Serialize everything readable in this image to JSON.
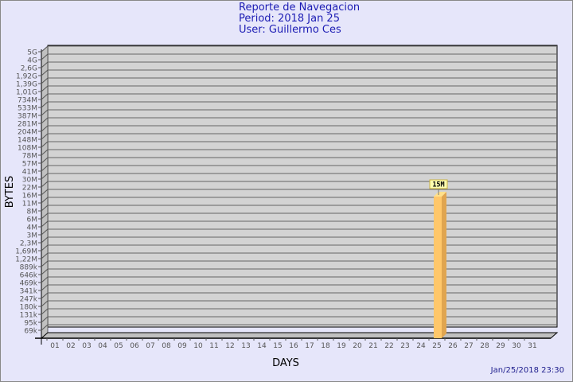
{
  "header": {
    "title": "Reporte de Navegacion",
    "period": "Period: 2018 Jan 25",
    "user": "User: Guillermo Ces"
  },
  "footer": {
    "timestamp": "Jan/25/2018 23:30"
  },
  "colors": {
    "background": "#e6e6fa",
    "plot": "#d3d3d3",
    "bar": "#ffc76a",
    "bar_side": "#e0a550",
    "title": "#1c1cb4"
  },
  "chart_data": {
    "type": "bar",
    "xlabel": "DAYS",
    "ylabel": "BYTES",
    "y_scale": "log-like (non-linear tick labels)",
    "grid": true,
    "y_ticks": [
      "5G",
      "4G",
      "2,6G",
      "1,92G",
      "1,39G",
      "1,01G",
      "734M",
      "533M",
      "387M",
      "281M",
      "204M",
      "148M",
      "108M",
      "78M",
      "57M",
      "41M",
      "30M",
      "22M",
      "16M",
      "11M",
      "8M",
      "6M",
      "4M",
      "3M",
      "2,3M",
      "1,69M",
      "1,22M",
      "889k",
      "646k",
      "469k",
      "341k",
      "247k",
      "180k",
      "131k",
      "95k",
      "69k"
    ],
    "y_tick_values": [
      5000000000.0,
      4000000000.0,
      2600000000.0,
      1920000000.0,
      1390000000.0,
      1010000000.0,
      734000000.0,
      533000000.0,
      387000000.0,
      281000000.0,
      204000000.0,
      148000000.0,
      108000000.0,
      78000000.0,
      57000000.0,
      41000000.0,
      30000000.0,
      22000000.0,
      16000000.0,
      11000000.0,
      8000000.0,
      6000000.0,
      4000000.0,
      3000000.0,
      2300000.0,
      1690000.0,
      1220000.0,
      889000.0,
      646000.0,
      469000.0,
      341000.0,
      247000.0,
      180000.0,
      131000.0,
      95000.0,
      69000.0
    ],
    "categories": [
      "01",
      "02",
      "03",
      "04",
      "05",
      "06",
      "07",
      "08",
      "09",
      "10",
      "11",
      "12",
      "13",
      "14",
      "15",
      "16",
      "17",
      "18",
      "19",
      "20",
      "21",
      "22",
      "23",
      "24",
      "25",
      "26",
      "27",
      "28",
      "29",
      "30",
      "31"
    ],
    "values": [
      0,
      0,
      0,
      0,
      0,
      0,
      0,
      0,
      0,
      0,
      0,
      0,
      0,
      0,
      0,
      0,
      0,
      0,
      0,
      0,
      0,
      0,
      0,
      0,
      15000000,
      0,
      0,
      0,
      0,
      0,
      0
    ],
    "data_labels": {
      "25": "15M"
    }
  }
}
